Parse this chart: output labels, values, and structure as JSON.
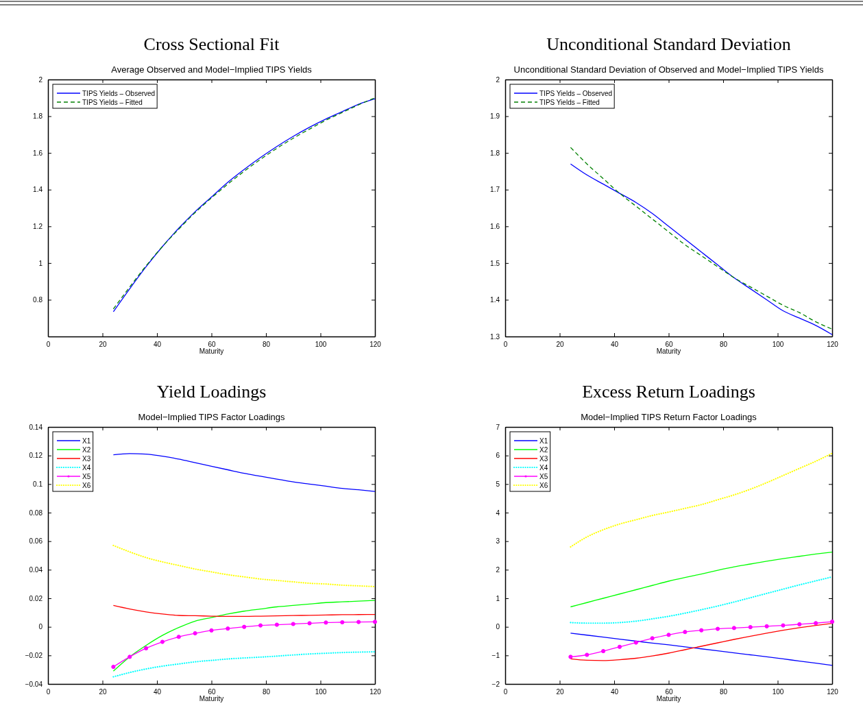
{
  "chart_data": [
    {
      "type": "line",
      "title": "Cross Sectional Fit",
      "subtitle": "Average Observed and Model−Implied TIPS Yields",
      "xlabel": "Maturity",
      "xlim": [
        0,
        120
      ],
      "xticks": [
        0,
        20,
        40,
        60,
        80,
        100,
        120
      ],
      "ylim": [
        0.6,
        2
      ],
      "yticks": [
        0.8,
        1,
        1.2,
        1.4,
        1.6,
        1.8,
        2
      ],
      "legend": "top left",
      "grid": false,
      "x": [
        24,
        30,
        36,
        42,
        48,
        54,
        60,
        66,
        72,
        78,
        84,
        90,
        96,
        102,
        108,
        114,
        120
      ],
      "series": [
        {
          "name": "TIPS Yields – Observed",
          "color": "#0000ff",
          "line_style": "solid",
          "values": [
            0.735,
            0.86,
            0.98,
            1.09,
            1.19,
            1.28,
            1.36,
            1.44,
            1.51,
            1.575,
            1.635,
            1.69,
            1.74,
            1.785,
            1.825,
            1.865,
            1.895
          ]
        },
        {
          "name": "TIPS Yields – Fitted",
          "color": "#008000",
          "line_style": "dashed",
          "values": [
            0.75,
            0.87,
            0.985,
            1.09,
            1.185,
            1.275,
            1.355,
            1.43,
            1.5,
            1.565,
            1.625,
            1.68,
            1.73,
            1.778,
            1.82,
            1.862,
            1.9
          ]
        }
      ]
    },
    {
      "type": "line",
      "title": "Unconditional Standard Deviation",
      "subtitle": "Unconditional Standard Deviation of Observed and Model−Implied TIPS Yields",
      "xlabel": "Maturity",
      "xlim": [
        0,
        120
      ],
      "xticks": [
        0,
        20,
        40,
        60,
        80,
        100,
        120
      ],
      "ylim": [
        1.3,
        2
      ],
      "yticks": [
        1.3,
        1.4,
        1.5,
        1.6,
        1.7,
        1.8,
        1.9,
        2
      ],
      "legend": "top left",
      "grid": false,
      "x": [
        24,
        30,
        36,
        42,
        48,
        54,
        60,
        66,
        72,
        78,
        84,
        90,
        96,
        102,
        108,
        114,
        120
      ],
      "series": [
        {
          "name": "TIPS Yields – Observed",
          "color": "#0000ff",
          "line_style": "solid",
          "values": [
            1.77,
            1.74,
            1.715,
            1.69,
            1.665,
            1.635,
            1.6,
            1.565,
            1.53,
            1.495,
            1.46,
            1.43,
            1.4,
            1.37,
            1.35,
            1.33,
            1.305
          ]
        },
        {
          "name": "TIPS Yields – Fitted",
          "color": "#008000",
          "line_style": "dashed",
          "values": [
            1.815,
            1.77,
            1.73,
            1.69,
            1.655,
            1.62,
            1.585,
            1.55,
            1.52,
            1.49,
            1.46,
            1.435,
            1.41,
            1.385,
            1.365,
            1.34,
            1.32
          ]
        }
      ]
    },
    {
      "type": "line",
      "title": "Yield Loadings",
      "subtitle": "Model−Implied TIPS Factor Loadings",
      "xlabel": "Maturity",
      "xlim": [
        0,
        120
      ],
      "xticks": [
        0,
        20,
        40,
        60,
        80,
        100,
        120
      ],
      "ylim": [
        -0.04,
        0.14
      ],
      "yticks": [
        {
          "value": -0.04,
          "label": "−0.04"
        },
        {
          "value": -0.02,
          "label": "−0.02"
        },
        0,
        0.02,
        0.04,
        0.06,
        0.08,
        0.1,
        0.12,
        0.14
      ],
      "legend": "top left",
      "grid": false,
      "x": [
        24,
        30,
        36,
        42,
        48,
        54,
        60,
        66,
        72,
        78,
        84,
        90,
        96,
        102,
        108,
        114,
        120
      ],
      "series": [
        {
          "name": "X1",
          "color": "#0000ff",
          "line_style": "solid",
          "values": [
            0.1205,
            0.1213,
            0.121,
            0.1195,
            0.1175,
            0.115,
            0.1125,
            0.11,
            0.1075,
            0.1055,
            0.1035,
            0.1015,
            0.1,
            0.0985,
            0.097,
            0.096,
            0.0948
          ]
        },
        {
          "name": "X2",
          "color": "#00ff00",
          "line_style": "solid",
          "values": [
            -0.031,
            -0.021,
            -0.013,
            -0.006,
            -0.0005,
            0.004,
            0.0065,
            0.009,
            0.011,
            0.0125,
            0.014,
            0.015,
            0.016,
            0.017,
            0.0175,
            0.018,
            0.0185
          ]
        },
        {
          "name": "X3",
          "color": "#ff0000",
          "line_style": "solid",
          "values": [
            0.015,
            0.0125,
            0.0105,
            0.009,
            0.008,
            0.0078,
            0.0075,
            0.0073,
            0.0073,
            0.0075,
            0.0077,
            0.0079,
            0.0081,
            0.0083,
            0.0085,
            0.0086,
            0.0087
          ]
        },
        {
          "name": "X4",
          "color": "#00ffff",
          "line_style": "dotted",
          "values": [
            -0.035,
            -0.032,
            -0.0295,
            -0.0275,
            -0.026,
            -0.0245,
            -0.0235,
            -0.0225,
            -0.0218,
            -0.0212,
            -0.0205,
            -0.0197,
            -0.019,
            -0.0185,
            -0.018,
            -0.0177,
            -0.0175
          ]
        },
        {
          "name": "X5",
          "color": "#ff00ff",
          "line_style": "solid",
          "marker": "circle",
          "values": [
            -0.028,
            -0.021,
            -0.015,
            -0.0105,
            -0.007,
            -0.0045,
            -0.0025,
            -0.0012,
            0,
            0.001,
            0.0015,
            0.002,
            0.0025,
            0.003,
            0.0032,
            0.0034,
            0.0035
          ]
        },
        {
          "name": "X6",
          "color": "#ffff00",
          "line_style": "dotted",
          "values": [
            0.057,
            0.0525,
            0.0485,
            0.0455,
            0.043,
            0.0405,
            0.0385,
            0.0365,
            0.035,
            0.0335,
            0.0325,
            0.0315,
            0.0305,
            0.03,
            0.0292,
            0.0287,
            0.0282
          ]
        }
      ]
    },
    {
      "type": "line",
      "title": "Excess Return Loadings",
      "subtitle": "Model−Implied TIPS Return Factor Loadings",
      "xlabel": "Maturity",
      "xlim": [
        0,
        120
      ],
      "xticks": [
        0,
        20,
        40,
        60,
        80,
        100,
        120
      ],
      "ylim": [
        -2,
        7
      ],
      "yticks": [
        {
          "value": -2,
          "label": "−2"
        },
        {
          "value": -1,
          "label": "−1"
        },
        0,
        1,
        2,
        3,
        4,
        5,
        6,
        7
      ],
      "legend": "top left",
      "grid": false,
      "x": [
        24,
        30,
        36,
        42,
        48,
        54,
        60,
        66,
        72,
        78,
        84,
        90,
        96,
        102,
        108,
        114,
        120
      ],
      "series": [
        {
          "name": "X1",
          "color": "#0000ff",
          "line_style": "solid",
          "values": [
            -0.22,
            -0.29,
            -0.36,
            -0.43,
            -0.5,
            -0.57,
            -0.63,
            -0.7,
            -0.77,
            -0.84,
            -0.91,
            -0.98,
            -1.05,
            -1.12,
            -1.2,
            -1.27,
            -1.35
          ]
        },
        {
          "name": "X2",
          "color": "#00ff00",
          "line_style": "solid",
          "values": [
            0.7,
            0.85,
            1.0,
            1.15,
            1.3,
            1.45,
            1.6,
            1.73,
            1.85,
            1.98,
            2.1,
            2.2,
            2.3,
            2.39,
            2.47,
            2.55,
            2.62
          ]
        },
        {
          "name": "X3",
          "color": "#ff0000",
          "line_style": "solid",
          "values": [
            -1.12,
            -1.17,
            -1.18,
            -1.15,
            -1.1,
            -1.02,
            -0.92,
            -0.8,
            -0.68,
            -0.56,
            -0.44,
            -0.33,
            -0.22,
            -0.12,
            -0.03,
            0.05,
            0.12
          ]
        },
        {
          "name": "X4",
          "color": "#00ffff",
          "line_style": "dotted",
          "values": [
            0.15,
            0.13,
            0.13,
            0.15,
            0.2,
            0.28,
            0.37,
            0.48,
            0.6,
            0.73,
            0.87,
            1.02,
            1.17,
            1.32,
            1.47,
            1.61,
            1.75
          ]
        },
        {
          "name": "X5",
          "color": "#ff00ff",
          "line_style": "solid",
          "marker": "circle",
          "values": [
            -1.05,
            -0.98,
            -0.85,
            -0.7,
            -0.55,
            -0.4,
            -0.28,
            -0.18,
            -0.12,
            -0.07,
            -0.04,
            -0.01,
            0.02,
            0.05,
            0.09,
            0.13,
            0.18
          ]
        },
        {
          "name": "X6",
          "color": "#ffff00",
          "line_style": "dotted",
          "values": [
            2.8,
            3.15,
            3.4,
            3.6,
            3.75,
            3.9,
            4.02,
            4.15,
            4.28,
            4.45,
            4.62,
            4.82,
            5.05,
            5.3,
            5.55,
            5.8,
            6.08
          ]
        }
      ]
    }
  ]
}
